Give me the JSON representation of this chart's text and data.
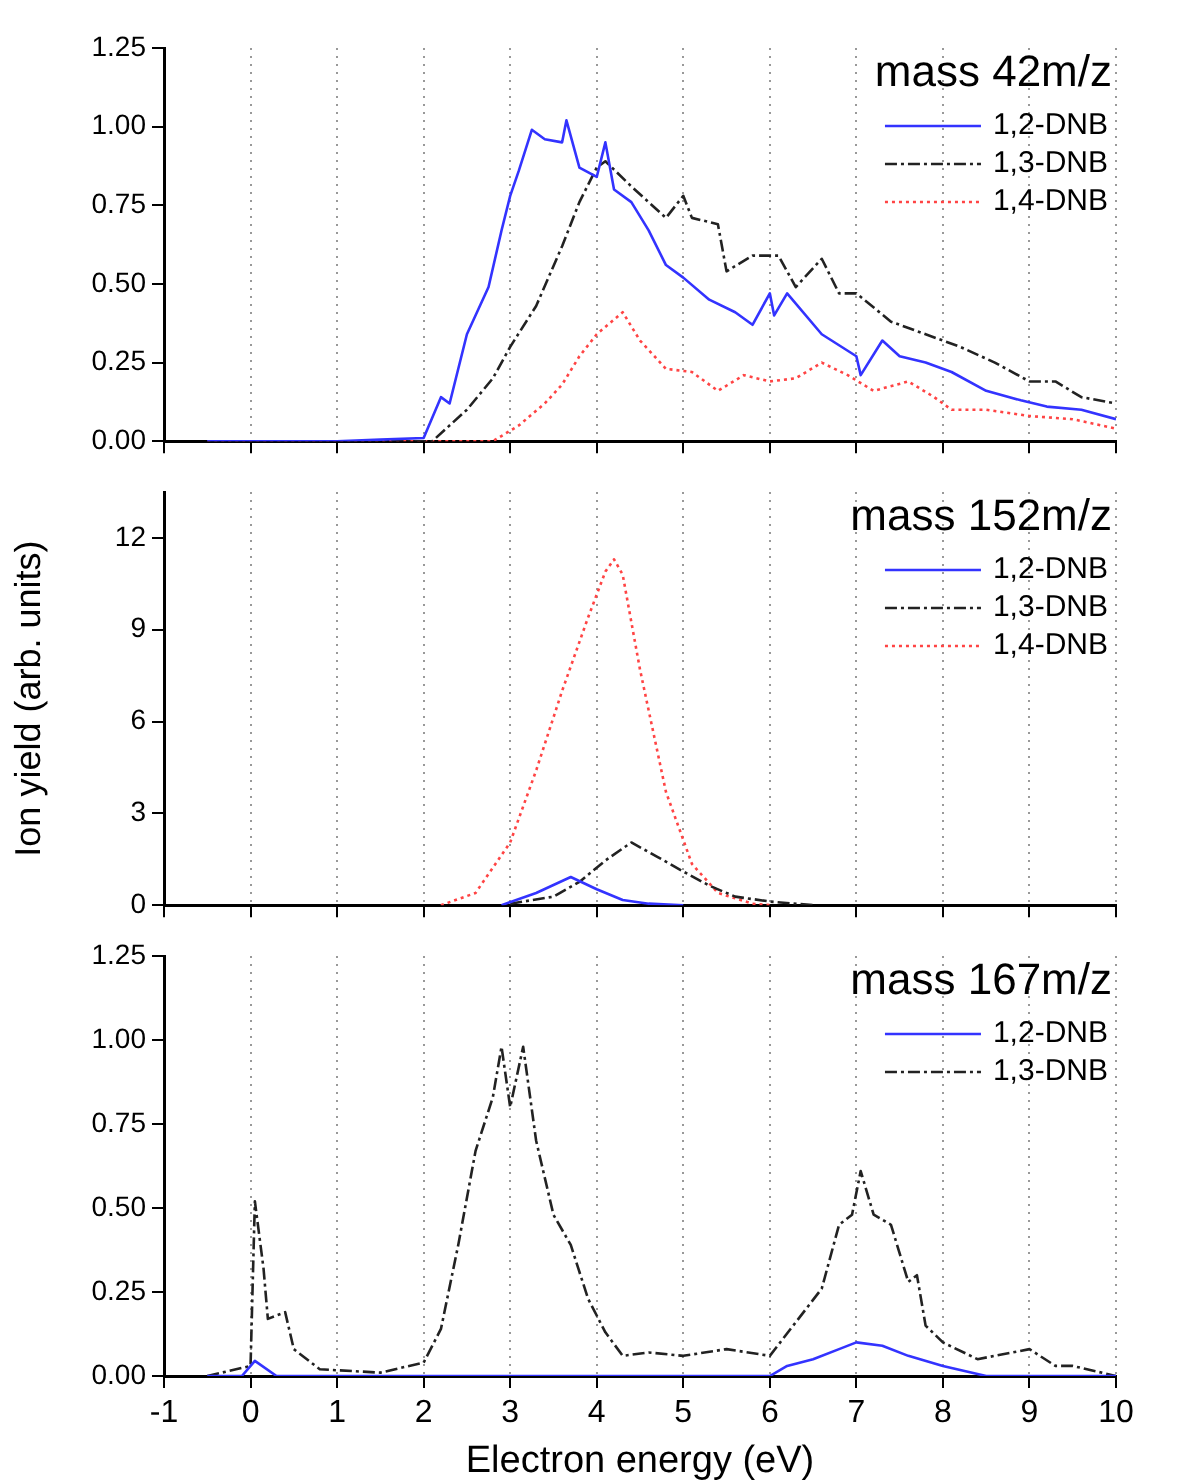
{
  "chart_data": [
    {
      "type": "line",
      "legend_title": "mass 42m/z",
      "xlim": [
        -1,
        10
      ],
      "xticks": [
        -1,
        0,
        1,
        2,
        3,
        4,
        5,
        6,
        7,
        8,
        9,
        10
      ],
      "ylim": [
        0,
        1.25
      ],
      "yticks": [
        {
          "value": 0,
          "label": "0.00"
        },
        {
          "value": 0.25,
          "label": "0.25"
        },
        {
          "value": 0.5,
          "label": "0.50"
        },
        {
          "value": 0.75,
          "label": "0.75"
        },
        {
          "value": 1,
          "label": "1.00"
        },
        {
          "value": 1.25,
          "label": "1.25"
        }
      ],
      "grid": "x",
      "legend": "top right",
      "tick_labels": "y",
      "marker": "none",
      "series": [
        {
          "name": "1,2-DNB",
          "color": "#3333ff",
          "line_style": "solid",
          "x": [
            -0.5,
            1.0,
            1.5,
            2.0,
            2.2,
            2.3,
            2.5,
            2.75,
            2.9,
            3.0,
            3.1,
            3.25,
            3.4,
            3.6,
            3.65,
            3.8,
            4.0,
            4.1,
            4.2,
            4.4,
            4.6,
            4.8,
            5.0,
            5.3,
            5.6,
            5.8,
            6.0,
            6.05,
            6.2,
            6.6,
            7.0,
            7.05,
            7.3,
            7.5,
            7.8,
            8.1,
            8.5,
            8.9,
            9.2,
            9.6,
            10.0
          ],
          "values": [
            0,
            0,
            0.005,
            0.01,
            0.14,
            0.12,
            0.34,
            0.49,
            0.67,
            0.78,
            0.86,
            0.99,
            0.96,
            0.95,
            1.02,
            0.87,
            0.84,
            0.95,
            0.8,
            0.76,
            0.67,
            0.56,
            0.52,
            0.45,
            0.41,
            0.37,
            0.47,
            0.4,
            0.47,
            0.34,
            0.27,
            0.21,
            0.32,
            0.27,
            0.25,
            0.22,
            0.16,
            0.13,
            0.11,
            0.1,
            0.07
          ]
        },
        {
          "name": "1,3-DNB",
          "color": "#222222",
          "line_style": "dashed",
          "x": [
            -0.5,
            2.1,
            2.5,
            2.8,
            3.0,
            3.3,
            3.6,
            3.8,
            4.0,
            4.1,
            4.4,
            4.8,
            5.0,
            5.1,
            5.4,
            5.5,
            5.8,
            6.1,
            6.3,
            6.6,
            6.8,
            7.0,
            7.4,
            7.8,
            8.2,
            8.6,
            9.0,
            9.3,
            9.6,
            10.0
          ],
          "values": [
            0,
            0,
            0.1,
            0.2,
            0.3,
            0.43,
            0.62,
            0.76,
            0.87,
            0.89,
            0.81,
            0.71,
            0.78,
            0.71,
            0.69,
            0.54,
            0.59,
            0.59,
            0.49,
            0.58,
            0.47,
            0.47,
            0.38,
            0.34,
            0.3,
            0.25,
            0.19,
            0.19,
            0.14,
            0.12
          ]
        },
        {
          "name": "1,4-DNB",
          "color": "#ff4444",
          "line_style": "dotted",
          "x": [
            -0.5,
            2.8,
            3.1,
            3.4,
            3.6,
            3.8,
            4.0,
            4.3,
            4.5,
            4.8,
            5.1,
            5.4,
            5.7,
            6.0,
            6.3,
            6.6,
            6.9,
            7.2,
            7.6,
            7.9,
            8.1,
            8.5,
            9.0,
            9.5,
            10.0
          ],
          "values": [
            0,
            0,
            0.05,
            0.12,
            0.18,
            0.27,
            0.34,
            0.41,
            0.32,
            0.23,
            0.22,
            0.16,
            0.21,
            0.19,
            0.2,
            0.25,
            0.21,
            0.16,
            0.19,
            0.14,
            0.1,
            0.1,
            0.08,
            0.07,
            0.04
          ]
        }
      ]
    },
    {
      "type": "line",
      "legend_title": "mass 152m/z",
      "ylabel": "Ion yield (arb. units)",
      "xlim": [
        -1,
        10
      ],
      "xticks": [
        -1,
        0,
        1,
        2,
        3,
        4,
        5,
        6,
        7,
        8,
        9,
        10
      ],
      "ylim": [
        0,
        13.5
      ],
      "yticks": [
        0,
        3,
        6,
        9,
        12
      ],
      "grid": "x",
      "legend": "top right",
      "tick_labels": "y",
      "marker": "none",
      "series": [
        {
          "name": "1,2-DNB",
          "color": "#3333ff",
          "line_style": "solid",
          "x": [
            2.9,
            3.3,
            3.7,
            4.0,
            4.3,
            4.6,
            5.0
          ],
          "values": [
            0,
            0.4,
            0.92,
            0.52,
            0.17,
            0.05,
            0
          ]
        },
        {
          "name": "1,3-DNB",
          "color": "#222222",
          "line_style": "dashed",
          "x": [
            3.0,
            3.5,
            3.8,
            4.1,
            4.4,
            4.7,
            5.0,
            5.3,
            5.6,
            6.0,
            6.5
          ],
          "values": [
            0.05,
            0.28,
            0.76,
            1.46,
            2.05,
            1.58,
            1.1,
            0.64,
            0.28,
            0.12,
            0
          ]
        },
        {
          "name": "1,4-DNB",
          "color": "#ff4444",
          "line_style": "dotted",
          "x": [
            2.2,
            2.6,
            3.0,
            3.3,
            3.6,
            3.9,
            4.1,
            4.2,
            4.3,
            4.5,
            4.8,
            5.1,
            5.4,
            5.8,
            6.0
          ],
          "values": [
            0,
            0.4,
            2.05,
            4.4,
            7.0,
            9.4,
            10.9,
            11.3,
            10.8,
            7.7,
            3.7,
            1.35,
            0.4,
            0.05,
            0
          ]
        }
      ]
    },
    {
      "type": "line",
      "legend_title": "mass 167m/z",
      "xlabel": "Electron energy (eV)",
      "xlim": [
        -1,
        10
      ],
      "xticks": [
        -1,
        0,
        1,
        2,
        3,
        4,
        5,
        6,
        7,
        8,
        9,
        10
      ],
      "ylim": [
        0,
        1.25
      ],
      "yticks": [
        {
          "value": 0,
          "label": "0.00"
        },
        {
          "value": 0.25,
          "label": "0.25"
        },
        {
          "value": 0.5,
          "label": "0.50"
        },
        {
          "value": 0.75,
          "label": "0.75"
        },
        {
          "value": 1,
          "label": "1.00"
        },
        {
          "value": 1.25,
          "label": "1.25"
        }
      ],
      "grid": "x",
      "legend": "top right",
      "marker": "none",
      "series": [
        {
          "name": "1,2-DNB",
          "color": "#3333ff",
          "line_style": "solid",
          "x": [
            -0.5,
            -0.1,
            0.05,
            0.3,
            6.0,
            6.2,
            6.5,
            6.8,
            7.0,
            7.3,
            7.6,
            8.0,
            8.5,
            10.0
          ],
          "values": [
            0,
            0,
            0.045,
            0,
            0,
            0.03,
            0.05,
            0.08,
            0.1,
            0.09,
            0.06,
            0.03,
            0,
            0
          ]
        },
        {
          "name": "1,3-DNB",
          "color": "#222222",
          "line_style": "dashed",
          "x": [
            -0.5,
            0.0,
            0.05,
            0.15,
            0.2,
            0.4,
            0.5,
            0.8,
            1.5,
            2.0,
            2.2,
            2.4,
            2.6,
            2.8,
            2.9,
            3.0,
            3.15,
            3.3,
            3.5,
            3.7,
            3.9,
            4.1,
            4.3,
            4.6,
            5.0,
            5.5,
            6.0,
            6.3,
            6.6,
            6.8,
            6.95,
            7.05,
            7.2,
            7.4,
            7.6,
            7.7,
            7.8,
            8.0,
            8.4,
            8.8,
            9.0,
            9.3,
            9.5,
            10.0
          ],
          "values": [
            0,
            0.03,
            0.52,
            0.32,
            0.17,
            0.19,
            0.08,
            0.02,
            0.01,
            0.04,
            0.14,
            0.39,
            0.67,
            0.83,
            0.98,
            0.8,
            0.98,
            0.7,
            0.48,
            0.39,
            0.23,
            0.13,
            0.06,
            0.07,
            0.06,
            0.08,
            0.06,
            0.16,
            0.26,
            0.45,
            0.48,
            0.61,
            0.48,
            0.45,
            0.28,
            0.3,
            0.15,
            0.1,
            0.05,
            0.07,
            0.08,
            0.03,
            0.03,
            0
          ]
        }
      ]
    }
  ]
}
